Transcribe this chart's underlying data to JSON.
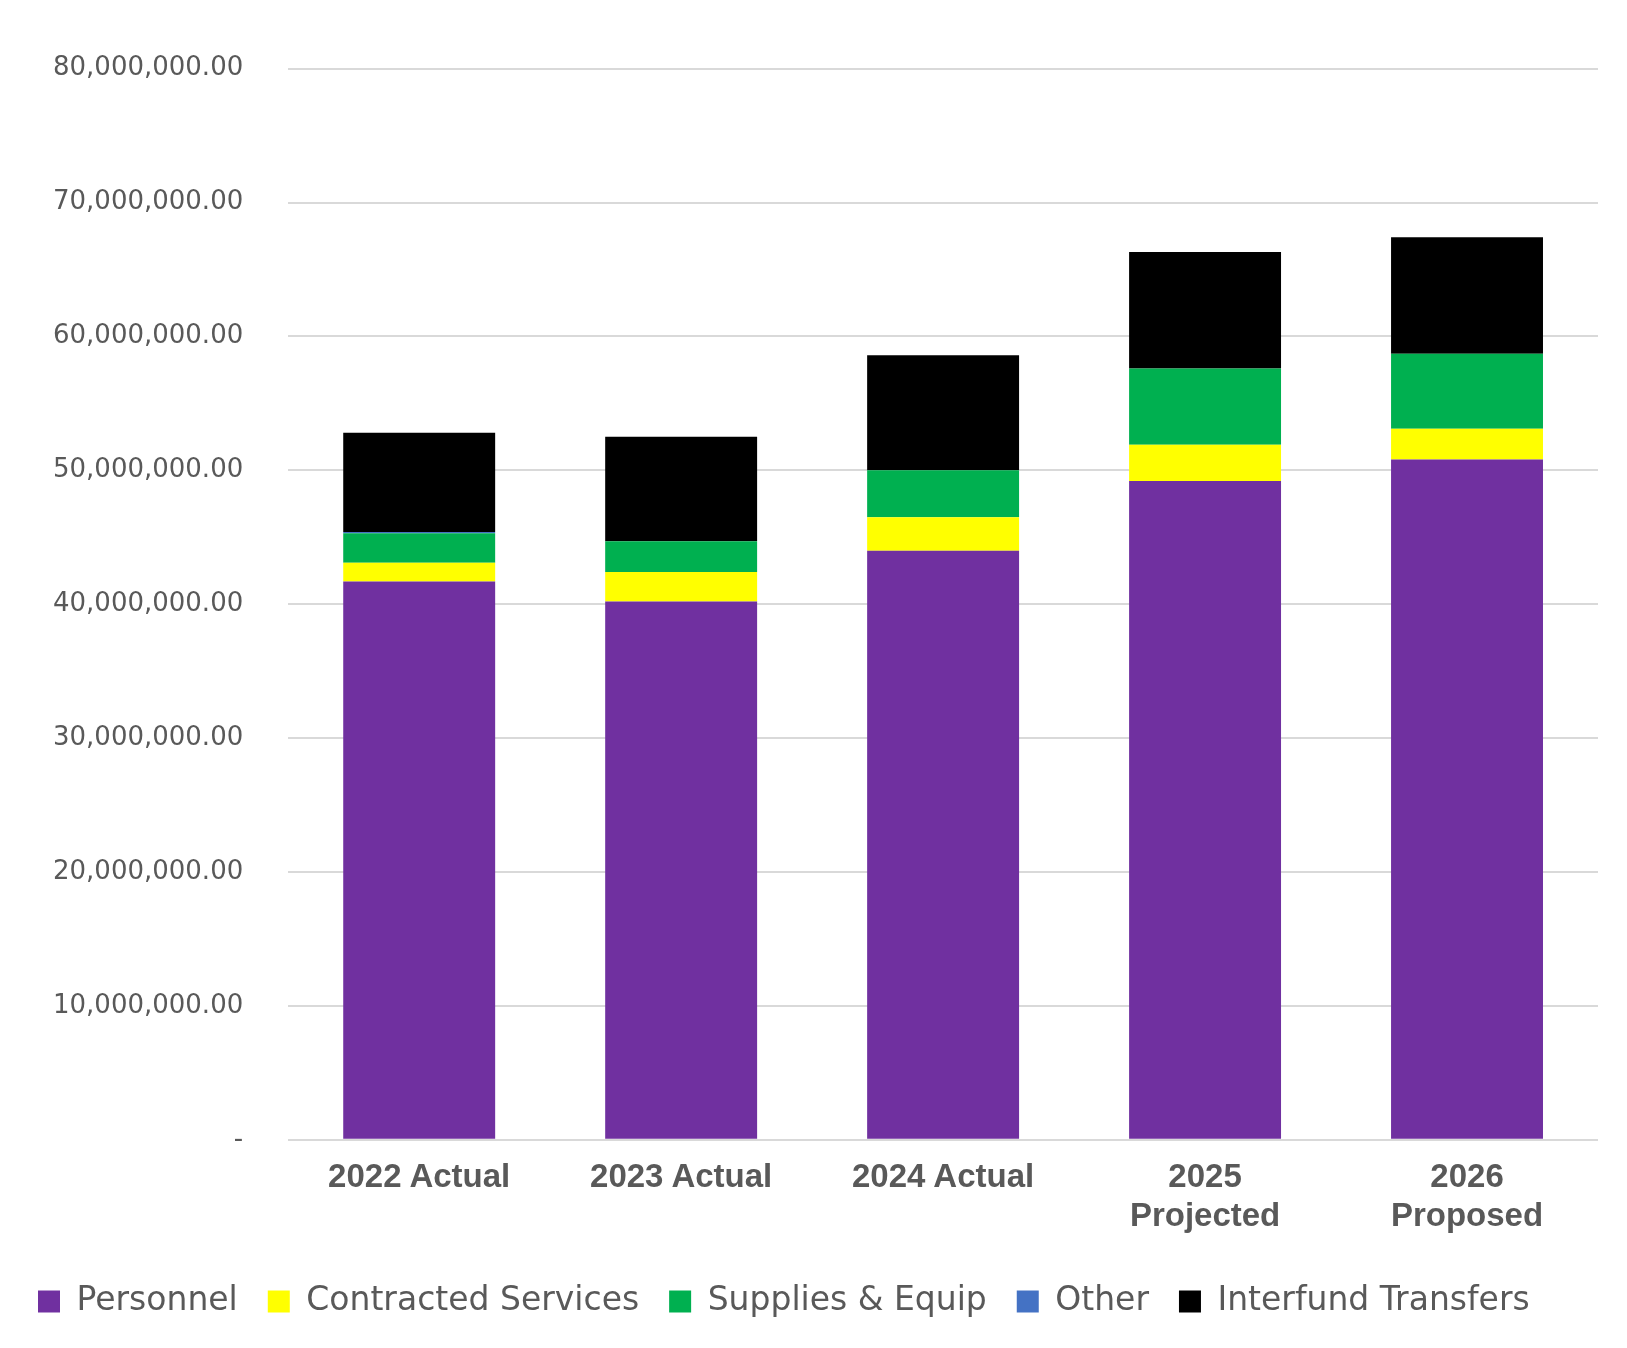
{
  "chart_data": {
    "type": "bar",
    "stacked": true,
    "categories": [
      "2022 Actual",
      "2023 Actual",
      "2024 Actual",
      "2025 Projected",
      "2026 Proposed"
    ],
    "series": [
      {
        "name": "Personnel",
        "color": "#7030a0",
        "values": [
          41700000,
          40200000,
          44000000,
          49200000,
          50800000
        ]
      },
      {
        "name": "Contracted Services",
        "color": "#ffff00",
        "values": [
          1400000,
          2200000,
          2500000,
          2700000,
          2300000
        ]
      },
      {
        "name": "Supplies & Equip",
        "color": "#00b050",
        "values": [
          2200000,
          2300000,
          3500000,
          5700000,
          5600000
        ]
      },
      {
        "name": "Other",
        "color": "#4472c4",
        "values": [
          100000,
          0,
          0,
          0,
          0
        ]
      },
      {
        "name": "Interfund Transfers",
        "color": "#000000",
        "values": [
          7400000,
          7800000,
          8600000,
          8700000,
          8700000
        ]
      }
    ],
    "ylim": [
      0,
      80000000
    ],
    "yticks": [
      {
        "value": 0,
        "label": "-"
      },
      {
        "value": 10000000,
        "label": "10,000,000.00"
      },
      {
        "value": 20000000,
        "label": "20,000,000.00"
      },
      {
        "value": 30000000,
        "label": "30,000,000.00"
      },
      {
        "value": 40000000,
        "label": "40,000,000.00"
      },
      {
        "value": 50000000,
        "label": "50,000,000.00"
      },
      {
        "value": 60000000,
        "label": "60,000,000.00"
      },
      {
        "value": 70000000,
        "label": "70,000,000.00"
      },
      {
        "value": 80000000,
        "label": "80,000,000.00"
      }
    ],
    "grid": "y",
    "legend": "bottom"
  }
}
